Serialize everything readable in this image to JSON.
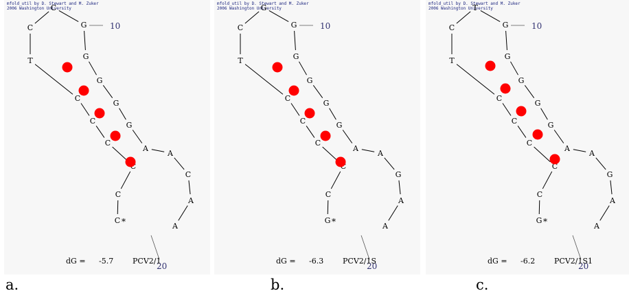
{
  "credit_line1": "mfold_util by D. Stewart and M. Zuker",
  "credit_line2": "2006 Washington University",
  "dg_label": "dG =",
  "tick_label_10": "10",
  "tick_label_20": "20",
  "colors": {
    "pair_marker": "#ff0000",
    "bond_line": "#000000",
    "tick_label": "#303070",
    "panel_bg": "#f7f7f7"
  },
  "panels": [
    {
      "caption": "a.",
      "dg_value": "-5.7",
      "name": "PCV2/1",
      "bases": [
        "C",
        "C",
        "C",
        "C",
        "C",
        "C",
        "T",
        "C",
        "C",
        "G",
        "G",
        "G",
        "G",
        "G",
        "A",
        "A",
        "C",
        "A",
        "A"
      ]
    },
    {
      "caption": "b.",
      "dg_value": "-6.3",
      "name": "PCV2/1S",
      "bases": [
        "G",
        "C",
        "C",
        "C",
        "C",
        "C",
        "T",
        "C",
        "G",
        "G",
        "G",
        "G",
        "G",
        "G",
        "A",
        "A",
        "G",
        "A",
        "A"
      ]
    },
    {
      "caption": "c.",
      "dg_value": "-6.2",
      "name": "PCV2/1S1",
      "bases": [
        "G",
        "C",
        "C",
        "C",
        "C",
        "C",
        "T",
        "C",
        "T",
        "G",
        "G",
        "G",
        "G",
        "G",
        "A",
        "A",
        "G",
        "A",
        "A"
      ]
    }
  ]
}
